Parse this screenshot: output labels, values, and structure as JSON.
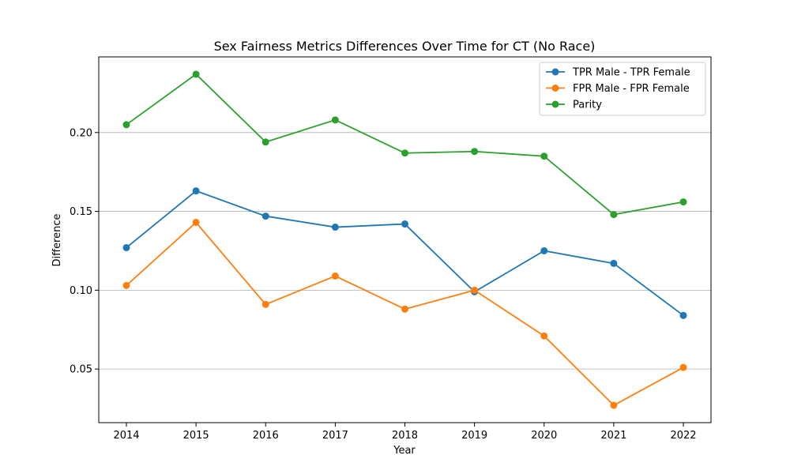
{
  "chart_data": {
    "type": "line",
    "title": "Sex Fairness Metrics Differences Over Time for CT (No Race)",
    "xlabel": "Year",
    "ylabel": "Difference",
    "x": [
      "2014",
      "2015",
      "2016",
      "2017",
      "2018",
      "2019",
      "2020",
      "2021",
      "2022"
    ],
    "ylim": [
      0.016,
      0.248
    ],
    "yticks": [
      "0.05",
      "0.10",
      "0.15",
      "0.20"
    ],
    "grid": "horizontal",
    "legend_position": "top-right",
    "series": [
      {
        "name": "TPR Male - TPR Female",
        "color": "#1f77b4",
        "values": [
          0.127,
          0.163,
          0.147,
          0.14,
          0.142,
          0.099,
          0.125,
          0.117,
          0.084
        ]
      },
      {
        "name": "FPR Male - FPR Female",
        "color": "#ff7f0e",
        "values": [
          0.103,
          0.143,
          0.091,
          0.109,
          0.088,
          0.1,
          0.071,
          0.027,
          0.051
        ]
      },
      {
        "name": "Parity",
        "color": "#2ca02c",
        "values": [
          0.205,
          0.237,
          0.194,
          0.208,
          0.187,
          0.188,
          0.185,
          0.148,
          0.156
        ]
      }
    ]
  }
}
